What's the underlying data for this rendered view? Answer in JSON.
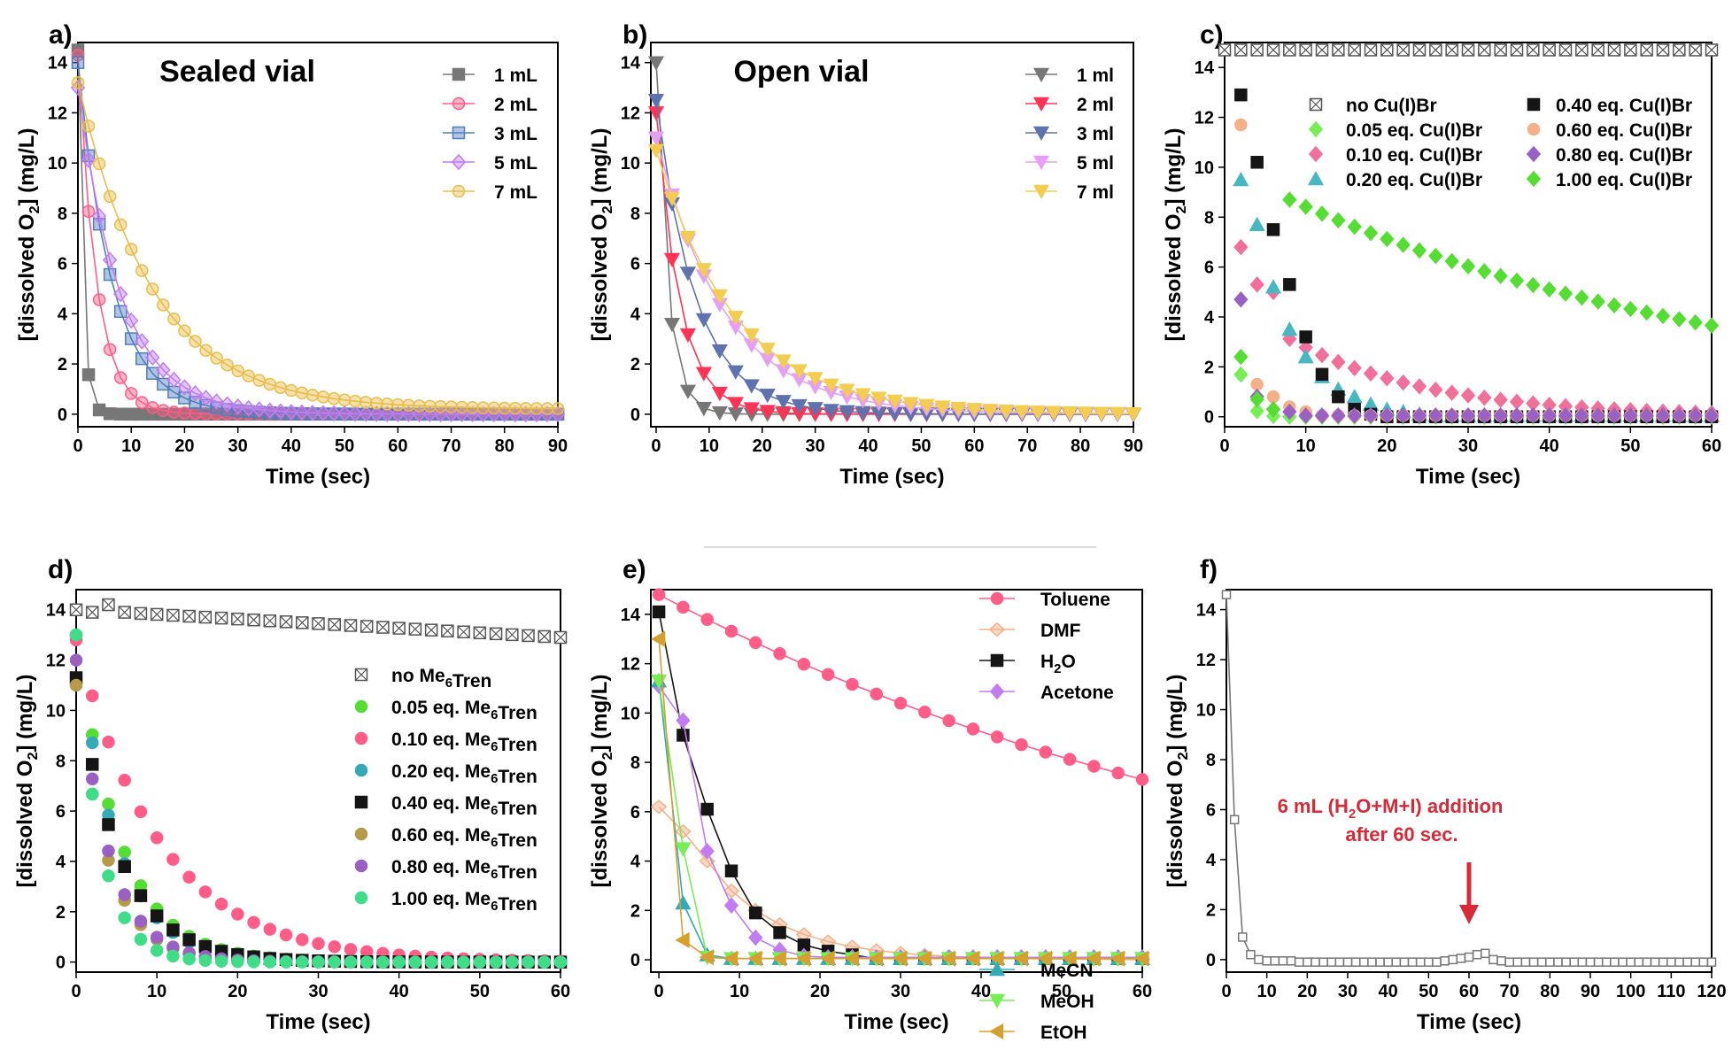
{
  "figure": {
    "colors": {
      "gray": "#777777",
      "pink": "#ff5c88",
      "blue": "#4f7fbd",
      "violet": "#c27cf0",
      "gold": "#e8bd4a",
      "red": "#ff3355",
      "slate": "#5e73ad",
      "lavender": "#e5a0f5",
      "yellow": "#f2cd50",
      "green": "#55dd33",
      "salmon": "#f0709a",
      "teal": "#47b8c2",
      "black": "#151515",
      "tan": "#b59a4a",
      "purple": "#9a60c4",
      "mint": "#40dd88",
      "orange": "#f4b087",
      "cyan": "#35aab5",
      "lime": "#77ee55",
      "ochre": "#d6a030",
      "dark": "#555555",
      "annot": "#d52b38"
    }
  },
  "chart_data": [
    {
      "id": "a",
      "panel_label": "a)",
      "type": "line",
      "title": "Sealed vial",
      "xlabel": "Time (sec)",
      "ylabel": "[dissolved O2] (mg/L)",
      "xlim": [
        0,
        90
      ],
      "ylim": [
        -0.5,
        14.8
      ],
      "xticks": [
        0,
        10,
        20,
        30,
        40,
        50,
        60,
        70,
        80,
        90
      ],
      "yticks": [
        0,
        2,
        4,
        6,
        8,
        10,
        12,
        14
      ],
      "series": [
        {
          "name": "1 mL",
          "color": "gray",
          "marker": "square",
          "fill": "solid",
          "peak": 14.5,
          "tau": 0.9,
          "step": 2
        },
        {
          "name": "2 mL",
          "color": "pink",
          "marker": "circle",
          "fill": "half",
          "peak": 14.3,
          "tau": 3.5,
          "step": 2
        },
        {
          "name": "3 mL",
          "color": "blue",
          "marker": "square",
          "fill": "half",
          "peak": 14.0,
          "tau": 6.5,
          "step": 2
        },
        {
          "name": "5 mL",
          "color": "violet",
          "marker": "diamond",
          "fill": "half",
          "peak": 13.0,
          "tau": 8.0,
          "step": 2
        },
        {
          "name": "7 mL",
          "color": "gold",
          "marker": "circle",
          "fill": "half",
          "peak": 13.2,
          "tau": 14.0,
          "floor": 0.2,
          "step": 2
        }
      ]
    },
    {
      "id": "b",
      "panel_label": "b)",
      "type": "line",
      "title": "Open vial",
      "xlabel": "Time (sec)",
      "ylabel": "[dissolved O2] (mg/L)",
      "xlim": [
        -1,
        90
      ],
      "ylim": [
        -0.5,
        14.8
      ],
      "xticks": [
        0,
        10,
        20,
        30,
        40,
        50,
        60,
        70,
        80,
        90
      ],
      "yticks": [
        0,
        2,
        4,
        6,
        8,
        10,
        12,
        14
      ],
      "series": [
        {
          "name": "1 ml",
          "color": "gray",
          "marker": "tri-down",
          "fill": "solid",
          "peak": 14.0,
          "tau": 2.2,
          "step": 3
        },
        {
          "name": "2 ml",
          "color": "red",
          "marker": "tri-down",
          "fill": "solid",
          "peak": 12.0,
          "tau": 4.5,
          "step": 3
        },
        {
          "name": "3 ml",
          "color": "slate",
          "marker": "tri-down",
          "fill": "solid",
          "peak": 12.5,
          "tau": 7.5,
          "step": 3
        },
        {
          "name": "5 ml",
          "color": "lavender",
          "marker": "tri-down",
          "fill": "solid",
          "peak": 11.0,
          "tau": 13.0,
          "step": 3
        },
        {
          "name": "7 ml",
          "color": "yellow",
          "marker": "tri-down",
          "fill": "solid",
          "peak": 10.5,
          "tau": 15.0,
          "step": 3
        }
      ]
    },
    {
      "id": "c",
      "panel_label": "c)",
      "type": "scatter",
      "xlabel": "Time (sec)",
      "ylabel": "[dissolved O2] (mg/L)",
      "xlim": [
        0,
        60
      ],
      "ylim": [
        -0.4,
        15.0
      ],
      "xticks": [
        0,
        10,
        20,
        30,
        40,
        50,
        60
      ],
      "yticks": [
        0,
        2,
        4,
        6,
        8,
        10,
        12,
        14
      ],
      "series": [
        {
          "name": "no Cu(I)Br",
          "color": "dark",
          "marker": "square",
          "fill": "hatched",
          "constant": 14.7,
          "step": 2
        },
        {
          "name": "0.05 eq. Cu(I)Br",
          "color": "lime",
          "marker": "diamond",
          "fill": "solid",
          "peak": 12.5,
          "tau": 1.0,
          "start": 2,
          "step": 2
        },
        {
          "name": "0.10 eq. Cu(I)Br",
          "color": "salmon",
          "marker": "diamond",
          "fill": "solid",
          "points": [
            [
              2,
              6.8
            ],
            [
              4,
              5.3
            ],
            [
              6,
              5.0
            ]
          ],
          "peak": 5.0,
          "tau": 17.0,
          "start": 8,
          "step": 2
        },
        {
          "name": "0.20 eq. Cu(I)Br",
          "color": "teal",
          "marker": "tri-up",
          "fill": "solid",
          "points": [
            [
              2,
              9.5
            ],
            [
              4,
              7.7
            ],
            [
              6,
              5.2
            ],
            [
              8,
              3.5
            ],
            [
              10,
              2.4
            ],
            [
              12,
              1.6
            ],
            [
              14,
              1.1
            ],
            [
              16,
              0.8
            ],
            [
              18,
              0.5
            ],
            [
              20,
              0.3
            ],
            [
              22,
              0.2
            ],
            [
              24,
              0.1
            ]
          ],
          "constant": 0.05,
          "start": 26,
          "step": 2
        },
        {
          "name": "0.40 eq. Cu(I)Br",
          "color": "black",
          "marker": "square",
          "fill": "solid",
          "points": [
            [
              2,
              12.9
            ],
            [
              4,
              10.2
            ],
            [
              6,
              7.5
            ],
            [
              8,
              5.3
            ],
            [
              10,
              3.2
            ],
            [
              12,
              1.7
            ],
            [
              14,
              0.8
            ],
            [
              16,
              0.3
            ],
            [
              18,
              0.1
            ]
          ],
          "constant": 0.0,
          "start": 20,
          "step": 2
        },
        {
          "name": "0.60 eq. Cu(I)Br",
          "color": "orange",
          "marker": "circle",
          "fill": "solid",
          "points": [
            [
              2,
              11.7
            ],
            [
              4,
              1.3
            ],
            [
              6,
              0.8
            ],
            [
              8,
              0.4
            ],
            [
              10,
              0.2
            ]
          ],
          "constant": 0.05,
          "start": 12,
          "step": 2
        },
        {
          "name": "0.80 eq. Cu(I)Br",
          "color": "purple",
          "marker": "diamond",
          "fill": "solid",
          "points": [
            [
              2,
              4.7
            ],
            [
              4,
              0.8
            ],
            [
              6,
              0.3
            ],
            [
              8,
              0.2
            ]
          ],
          "constant": 0.05,
          "start": 10,
          "step": 2
        },
        {
          "name": "1.00 eq. Cu(I)Br",
          "color": "green",
          "marker": "diamond",
          "fill": "solid",
          "points": [
            [
              2,
              2.4
            ],
            [
              4,
              0.7
            ],
            [
              6,
              0.3
            ]
          ],
          "start": 8,
          "step": 2,
          "peak": 9.3,
          "tau": 60.0,
          "startcurve": 4
        }
      ]
    },
    {
      "id": "d",
      "panel_label": "d)",
      "type": "scatter",
      "xlabel": "Time (sec)",
      "ylabel": "[dissolved O2] (mg/L)",
      "xlim": [
        0,
        60
      ],
      "ylim": [
        -0.4,
        14.8
      ],
      "xticks": [
        0,
        10,
        20,
        30,
        40,
        50,
        60
      ],
      "yticks": [
        0,
        2,
        4,
        6,
        8,
        10,
        12,
        14
      ],
      "series": [
        {
          "name": "no Me6Tren",
          "color": "dark",
          "marker": "square",
          "fill": "hatched",
          "points": [
            [
              0,
              14.0
            ],
            [
              2,
              13.9
            ],
            [
              4,
              14.2
            ],
            [
              6,
              13.9
            ]
          ],
          "linear": [
            14.0,
            12.9
          ],
          "start": 8,
          "step": 2
        },
        {
          "name": "0.05 eq. Me6Tren",
          "color": "green",
          "marker": "circle",
          "fill": "solid",
          "peak": 13.0,
          "tau": 5.5,
          "step": 2
        },
        {
          "name": "0.10 eq. Me6Tren",
          "color": "pink",
          "marker": "circle",
          "fill": "solid",
          "peak": 12.8,
          "tau": 10.5,
          "step": 2
        },
        {
          "name": "0.20 eq. Me6Tren",
          "color": "cyan",
          "marker": "circle",
          "fill": "solid",
          "peak": 13.0,
          "tau": 5.0,
          "step": 2
        },
        {
          "name": "0.40 eq. Me6Tren",
          "color": "black",
          "marker": "square",
          "fill": "solid",
          "peak": 11.3,
          "tau": 5.5,
          "step": 2
        },
        {
          "name": "0.60 eq. Me6Tren",
          "color": "tan",
          "marker": "circle",
          "fill": "solid",
          "peak": 11.0,
          "tau": 4.0,
          "step": 2
        },
        {
          "name": "0.80 eq. Me6Tren",
          "color": "purple",
          "marker": "circle",
          "fill": "solid",
          "peak": 12.0,
          "tau": 4.0,
          "step": 2
        },
        {
          "name": "1.00 eq. Me6Tren",
          "color": "mint",
          "marker": "circle",
          "fill": "solid",
          "peak": 13.0,
          "tau": 3.0,
          "step": 2
        }
      ]
    },
    {
      "id": "e",
      "panel_label": "e)",
      "type": "line",
      "xlabel": "Time (sec)",
      "ylabel": "[dissolved O2] (mg/L)",
      "xlim": [
        -1,
        60
      ],
      "ylim": [
        -0.5,
        15.0
      ],
      "xticks": [
        0,
        10,
        20,
        30,
        40,
        50,
        60
      ],
      "yticks": [
        0,
        2,
        4,
        6,
        8,
        10,
        12,
        14
      ],
      "series": [
        {
          "name": "Toluene",
          "color": "pink",
          "marker": "circle",
          "fill": "solid",
          "peak": 14.8,
          "tau": 85.0,
          "step": 3
        },
        {
          "name": "DMF",
          "color": "orange",
          "marker": "diamond-left",
          "fill": "half",
          "points": [
            [
              0,
              6.2
            ],
            [
              3,
              5.2
            ],
            [
              6,
              4.0
            ]
          ],
          "peak": 3.9,
          "tau": 9.0,
          "start": 9,
          "step": 3,
          "startcurve": 6
        },
        {
          "name": "H2O",
          "color": "black",
          "marker": "square",
          "fill": "solid",
          "points": [
            [
              0,
              14.1
            ],
            [
              3,
              9.1
            ],
            [
              6,
              6.1
            ],
            [
              9,
              3.6
            ],
            [
              12,
              1.9
            ],
            [
              15,
              1.1
            ],
            [
              18,
              0.6
            ],
            [
              21,
              0.35
            ],
            [
              24,
              0.2
            ]
          ],
          "constant": 0.05,
          "start": 27,
          "step": 3
        },
        {
          "name": "Acetone",
          "color": "violet",
          "marker": "diamond",
          "fill": "solid",
          "points": [
            [
              0,
              11.1
            ],
            [
              3,
              9.7
            ],
            [
              6,
              4.4
            ],
            [
              9,
              2.2
            ],
            [
              12,
              0.9
            ],
            [
              15,
              0.4
            ],
            [
              18,
              0.15
            ]
          ],
          "constant": 0.1,
          "start": 21,
          "step": 3
        },
        {
          "name": "MeCN",
          "color": "cyan",
          "marker": "tri-up",
          "fill": "solid",
          "points": [
            [
              0,
              11.3
            ],
            [
              3,
              2.3
            ],
            [
              6,
              0.2
            ]
          ],
          "constant": 0.05,
          "start": 9,
          "step": 3
        },
        {
          "name": "MeOH",
          "color": "lime",
          "marker": "tri-down",
          "fill": "solid",
          "points": [
            [
              0,
              11.3
            ],
            [
              3,
              4.5
            ],
            [
              6,
              0.1
            ]
          ],
          "constant": 0.05,
          "start": 9,
          "step": 3
        },
        {
          "name": "EtOH",
          "color": "ochre",
          "marker": "tri-left",
          "fill": "solid",
          "points": [
            [
              0,
              13.0
            ],
            [
              3,
              0.8
            ],
            [
              6,
              0.1
            ]
          ],
          "constant": 0.05,
          "start": 9,
          "step": 3
        }
      ]
    },
    {
      "id": "f",
      "panel_label": "f)",
      "type": "line",
      "xlabel": "Time (sec)",
      "ylabel": "[dissolved O2] (mg/L)",
      "xlim": [
        0,
        120
      ],
      "ylim": [
        -0.5,
        14.8
      ],
      "xticks": [
        0,
        10,
        20,
        30,
        40,
        50,
        60,
        70,
        80,
        90,
        100,
        110,
        120
      ],
      "yticks": [
        0,
        2,
        4,
        6,
        8,
        10,
        12,
        14
      ],
      "annotation": {
        "line1": "6 mL (H2O+M+I) addition",
        "line2": "after 60 sec.",
        "arrow_x": 60
      },
      "series": [
        {
          "name": "",
          "color": "gray",
          "marker": "square",
          "fill": "hollow",
          "points": [
            [
              0,
              14.6
            ],
            [
              2,
              5.6
            ],
            [
              4,
              0.9
            ],
            [
              6,
              0.2
            ],
            [
              8,
              0.0
            ],
            [
              10,
              -0.05
            ],
            [
              12,
              -0.05
            ],
            [
              14,
              -0.05
            ],
            [
              16,
              -0.05
            ],
            [
              18,
              -0.1
            ],
            [
              20,
              -0.1
            ],
            [
              22,
              -0.1
            ],
            [
              24,
              -0.1
            ],
            [
              26,
              -0.1
            ],
            [
              28,
              -0.1
            ],
            [
              30,
              -0.1
            ],
            [
              32,
              -0.1
            ],
            [
              34,
              -0.1
            ],
            [
              36,
              -0.1
            ],
            [
              38,
              -0.1
            ],
            [
              40,
              -0.1
            ],
            [
              42,
              -0.1
            ],
            [
              44,
              -0.1
            ],
            [
              46,
              -0.1
            ],
            [
              48,
              -0.1
            ],
            [
              50,
              -0.1
            ],
            [
              52,
              -0.1
            ],
            [
              54,
              -0.05
            ],
            [
              56,
              0.0
            ],
            [
              58,
              0.05
            ],
            [
              60,
              0.1
            ],
            [
              62,
              0.2
            ],
            [
              64,
              0.25
            ],
            [
              66,
              0.0
            ],
            [
              68,
              -0.05
            ]
          ],
          "constant": -0.1,
          "start": 70,
          "step": 2,
          "end": 120
        }
      ]
    }
  ],
  "legends": {
    "a": [
      "1 mL",
      "2 mL",
      "3 mL",
      "5 mL",
      "7 mL"
    ],
    "b": [
      "1 ml",
      "2 ml",
      "3 ml",
      "5 ml",
      "7 ml"
    ],
    "c": [
      "no Cu(I)Br",
      "0.05 eq. Cu(I)Br",
      "0.10 eq. Cu(I)Br",
      "0.20 eq. Cu(I)Br",
      "0.40 eq. Cu(I)Br",
      "0.60 eq. Cu(I)Br",
      "0.80 eq. Cu(I)Br",
      "1.00 eq. Cu(I)Br"
    ],
    "d": [
      "no Me6Tren",
      "0.05 eq. Me6Tren",
      "0.10 eq. Me6Tren",
      "0.20 eq. Me6Tren",
      "0.40 eq. Me6Tren",
      "0.60 eq. Me6Tren",
      "0.80 eq. Me6Tren",
      "1.00 eq. Me6Tren"
    ],
    "e": [
      "Toluene",
      "DMF",
      "H2O",
      "Acetone",
      "MeCN",
      "MeOH",
      "EtOH"
    ]
  }
}
